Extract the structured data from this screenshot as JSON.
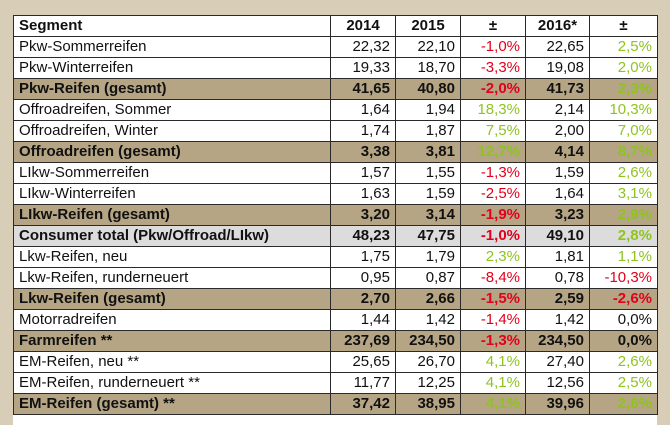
{
  "table": {
    "headers": [
      "Segment",
      "2014",
      "2015",
      "±",
      "2016*",
      "±"
    ],
    "rows": [
      {
        "segment": "Pkw-Sommerreifen",
        "y2014": "22,32",
        "y2015": "22,10",
        "chg15": "-1,0%",
        "y2016": "22,65",
        "chg16": "2,5%"
      },
      {
        "segment": "Pkw-Winterreifen",
        "y2014": "19,33",
        "y2015": "18,70",
        "chg15": "-3,3%",
        "y2016": "19,08",
        "chg16": "2,0%"
      },
      {
        "segment": "Pkw-Reifen (gesamt)",
        "y2014": "41,65",
        "y2015": "40,80",
        "chg15": "-2,0%",
        "y2016": "41,73",
        "chg16": "2,3%"
      },
      {
        "segment": "Offroadreifen, Sommer",
        "y2014": "1,64",
        "y2015": "1,94",
        "chg15": "18,3%",
        "y2016": "2,14",
        "chg16": "10,3%"
      },
      {
        "segment": "Offroadreifen, Winter",
        "y2014": "1,74",
        "y2015": "1,87",
        "chg15": "7,5%",
        "y2016": "2,00",
        "chg16": "7,0%"
      },
      {
        "segment": "Offroadreifen (gesamt)",
        "y2014": "3,38",
        "y2015": "3,81",
        "chg15": "12,7%",
        "y2016": "4,14",
        "chg16": "8,7%"
      },
      {
        "segment": "LIkw-Sommerreifen",
        "y2014": "1,57",
        "y2015": "1,55",
        "chg15": "-1,3%",
        "y2016": "1,59",
        "chg16": "2,6%"
      },
      {
        "segment": "LIkw-Winterreifen",
        "y2014": "1,63",
        "y2015": "1,59",
        "chg15": "-2,5%",
        "y2016": "1,64",
        "chg16": "3,1%"
      },
      {
        "segment": "LIkw-Reifen (gesamt)",
        "y2014": "3,20",
        "y2015": "3,14",
        "chg15": "-1,9%",
        "y2016": "3,23",
        "chg16": "2,9%"
      },
      {
        "segment": "Consumer total (Pkw/Offroad/LIkw)",
        "y2014": "48,23",
        "y2015": "47,75",
        "chg15": "-1,0%",
        "y2016": "49,10",
        "chg16": "2,8%"
      },
      {
        "segment": "Lkw-Reifen, neu",
        "y2014": "1,75",
        "y2015": "1,79",
        "chg15": "2,3%",
        "y2016": "1,81",
        "chg16": "1,1%"
      },
      {
        "segment": "Lkw-Reifen, runderneuert",
        "y2014": "0,95",
        "y2015": "0,87",
        "chg15": "-8,4%",
        "y2016": "0,78",
        "chg16": "-10,3%"
      },
      {
        "segment": "Lkw-Reifen (gesamt)",
        "y2014": "2,70",
        "y2015": "2,66",
        "chg15": "-1,5%",
        "y2016": "2,59",
        "chg16": "-2,6%"
      },
      {
        "segment": "Motorradreifen",
        "y2014": "1,44",
        "y2015": "1,42",
        "chg15": "-1,4%",
        "y2016": "1,42",
        "chg16": "0,0%"
      },
      {
        "segment": "Farmreifen **",
        "y2014": "237,69",
        "y2015": "234,50",
        "chg15": "-1,3%",
        "y2016": "234,50",
        "chg16": "0,0%"
      },
      {
        "segment": "EM-Reifen, neu **",
        "y2014": "25,65",
        "y2015": "26,70",
        "chg15": "4,1%",
        "y2016": "27,40",
        "chg16": "2,6%"
      },
      {
        "segment": "EM-Reifen, runderneuert **",
        "y2014": "11,77",
        "y2015": "12,25",
        "chg15": "4,1%",
        "y2016": "12,56",
        "chg16": "2,5%"
      },
      {
        "segment": "EM-Reifen (gesamt) **",
        "y2014": "37,42",
        "y2015": "38,95",
        "chg15": "4,1%",
        "y2016": "39,96",
        "chg16": "2,6%"
      }
    ]
  },
  "colors": {
    "total_row_bg": "#b5a584",
    "consumer_row_bg": "#dcdcdc",
    "negative": "#e3001b",
    "positive": "#8fc31f"
  }
}
